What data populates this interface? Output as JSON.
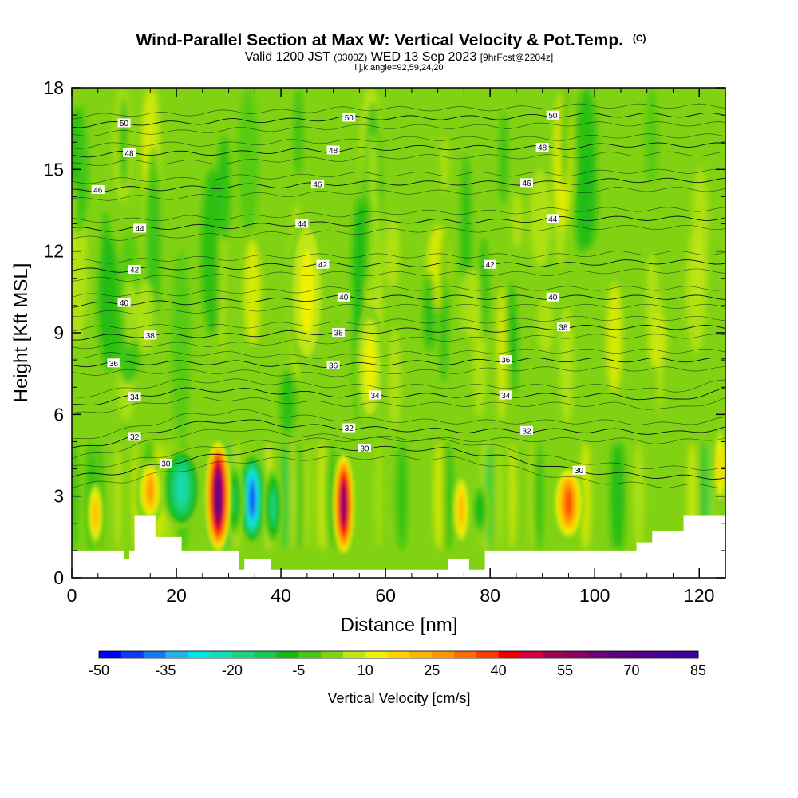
{
  "chart_data": {
    "type": "heatmap",
    "title": "Wind-Parallel Section at Max W: Vertical Velocity & Pot.Temp.",
    "title_mark": "(C)",
    "subtitle_main": "Valid 1200 JST",
    "subtitle_utc": "(0300Z)",
    "subtitle_date": "WED 13 Sep 2023",
    "subtitle_fcst": "[9hrFcst@2204z]",
    "subtitle2": "i,j,k,angle=92,59,24,20",
    "xlabel": "Distance [nm]",
    "ylabel": "Height [Kft MSL]",
    "xlim": [
      0,
      125
    ],
    "ylim": [
      0,
      18
    ],
    "x_ticks": [
      "0",
      "20",
      "40",
      "60",
      "80",
      "100",
      "120"
    ],
    "y_ticks": [
      "0",
      "3",
      "6",
      "9",
      "12",
      "15",
      "18"
    ],
    "colorbar": {
      "label": "Vertical Velocity [cm/s]",
      "tick_labels": [
        "-50",
        "-35",
        "-20",
        "-5",
        "10",
        "25",
        "40",
        "55",
        "70",
        "85"
      ],
      "min": -50,
      "step": 5,
      "colors": [
        "#0000f5",
        "#0a3cf5",
        "#1478f0",
        "#1eb4ee",
        "#00e6e6",
        "#14dcb4",
        "#1ed282",
        "#14c850",
        "#14b914",
        "#46c814",
        "#82d214",
        "#bee614",
        "#f0f000",
        "#ffd200",
        "#ffb400",
        "#ff9600",
        "#ff6e00",
        "#ff3c00",
        "#f00000",
        "#d2003c",
        "#a00050",
        "#8c0064",
        "#6e0078",
        "#5a0082",
        "#50008c",
        "#460096",
        "#3c00a0"
      ]
    },
    "background_w_cms": 0,
    "isentropes": [
      {
        "label": "30",
        "heights": [
          3.7,
          3.9,
          4.3,
          4.6,
          4.7,
          4.75,
          4.75,
          4.7,
          4.4,
          4.0,
          3.8,
          3.7,
          3.7
        ]
      },
      {
        "label": "32",
        "heights": [
          4.7,
          5.1,
          5.6,
          5.8,
          5.6,
          5.5,
          5.45,
          5.4,
          5.4,
          5.4,
          5.4,
          5.3,
          5.5
        ]
      },
      {
        "label": "34",
        "heights": [
          6.3,
          6.6,
          6.9,
          6.9,
          6.8,
          6.7,
          6.7,
          6.7,
          6.7,
          6.7,
          6.7,
          6.5,
          6.9
        ]
      },
      {
        "label": "36",
        "heights": [
          7.8,
          7.9,
          7.9,
          7.9,
          7.8,
          7.8,
          7.9,
          7.9,
          8.0,
          8.0,
          8.0,
          8.0,
          8.0
        ]
      },
      {
        "label": "38",
        "heights": [
          8.8,
          8.9,
          8.9,
          8.9,
          9.0,
          9.0,
          9.1,
          9.1,
          9.1,
          9.2,
          9.2,
          9.2,
          9.2
        ]
      },
      {
        "label": "40",
        "heights": [
          10.0,
          10.1,
          10.1,
          10.2,
          10.2,
          10.3,
          10.3,
          10.3,
          10.3,
          10.3,
          10.3,
          10.3,
          10.3
        ]
      },
      {
        "label": "42",
        "heights": [
          11.3,
          11.3,
          11.4,
          11.4,
          11.5,
          11.5,
          11.5,
          11.5,
          11.5,
          11.5,
          11.6,
          11.6,
          11.6
        ]
      },
      {
        "label": "44",
        "heights": [
          12.8,
          12.8,
          12.9,
          12.9,
          13.0,
          13.0,
          13.1,
          13.1,
          13.1,
          13.2,
          13.2,
          13.2,
          13.2
        ]
      },
      {
        "label": "46",
        "heights": [
          14.2,
          14.3,
          14.3,
          14.4,
          14.4,
          14.5,
          14.5,
          14.5,
          14.5,
          14.5,
          14.6,
          14.6,
          14.6
        ]
      },
      {
        "label": "48",
        "heights": [
          15.5,
          15.6,
          15.6,
          15.6,
          15.7,
          15.7,
          15.8,
          15.8,
          15.8,
          15.8,
          15.9,
          15.9,
          15.9
        ]
      },
      {
        "label": "50",
        "heights": [
          16.6,
          16.7,
          16.7,
          16.8,
          16.8,
          16.9,
          16.9,
          16.9,
          16.9,
          17.0,
          17.0,
          17.0,
          17.0
        ]
      }
    ],
    "terrain": [
      [
        0,
        1.0
      ],
      [
        10,
        1.0
      ],
      [
        10,
        0.7
      ],
      [
        11,
        0.7
      ],
      [
        11,
        1.0
      ],
      [
        12,
        1.0
      ],
      [
        12,
        2.3
      ],
      [
        16,
        2.3
      ],
      [
        16,
        1.5
      ],
      [
        21,
        1.5
      ],
      [
        21,
        1.0
      ],
      [
        32,
        1.0
      ],
      [
        32,
        0.3
      ],
      [
        33,
        0.3
      ],
      [
        33,
        0.7
      ],
      [
        38,
        0.7
      ],
      [
        38,
        0.3
      ],
      [
        72,
        0.3
      ],
      [
        72,
        0.7
      ],
      [
        76,
        0.7
      ],
      [
        76,
        0.3
      ],
      [
        79,
        0.3
      ],
      [
        79,
        1.0
      ],
      [
        108,
        1.0
      ],
      [
        108,
        1.3
      ],
      [
        111,
        1.3
      ],
      [
        111,
        1.7
      ],
      [
        117,
        1.7
      ],
      [
        117,
        2.3
      ],
      [
        125,
        2.3
      ]
    ],
    "updrafts": [
      {
        "x": 28,
        "z0": 0.9,
        "z1": 5.1,
        "half_width_nm": 1.3,
        "peak_w_cms": 70
      },
      {
        "x": 52,
        "z0": 0.8,
        "z1": 4.6,
        "half_width_nm": 1.1,
        "peak_w_cms": 60
      },
      {
        "x": 95,
        "z0": 1.4,
        "z1": 4.1,
        "half_width_nm": 1.5,
        "peak_w_cms": 35
      },
      {
        "x": 15,
        "z0": 2.0,
        "z1": 4.4,
        "half_width_nm": 1.4,
        "peak_w_cms": 28
      },
      {
        "x": 4.5,
        "z0": 1.2,
        "z1": 3.5,
        "half_width_nm": 0.8,
        "peak_w_cms": 20
      },
      {
        "x": 74.5,
        "z0": 1.2,
        "z1": 3.8,
        "half_width_nm": 0.9,
        "peak_w_cms": 22
      },
      {
        "x": 124,
        "z0": 2.4,
        "z1": 5.8,
        "half_width_nm": 0.9,
        "peak_w_cms": 18
      },
      {
        "x": 45,
        "z0": 7.5,
        "z1": 13.5,
        "half_width_nm": 2.0,
        "peak_w_cms": 12
      },
      {
        "x": 57,
        "z0": 5.5,
        "z1": 10.0,
        "half_width_nm": 1.5,
        "peak_w_cms": 10
      }
    ],
    "downdrafts": [
      {
        "x": 34.5,
        "z0": 1.2,
        "z1": 4.6,
        "half_width_nm": 1.4,
        "peak_w_cms": -45
      },
      {
        "x": 21,
        "z0": 1.8,
        "z1": 4.8,
        "half_width_nm": 2.0,
        "peak_w_cms": -22
      },
      {
        "x": 38.5,
        "z0": 1.2,
        "z1": 4.0,
        "half_width_nm": 1.0,
        "peak_w_cms": -18
      },
      {
        "x": 31,
        "z0": 1.5,
        "z1": 4.2,
        "half_width_nm": 1.0,
        "peak_w_cms": -15
      },
      {
        "x": 78,
        "z0": 1.5,
        "z1": 3.5,
        "half_width_nm": 1.0,
        "peak_w_cms": -10
      }
    ]
  }
}
